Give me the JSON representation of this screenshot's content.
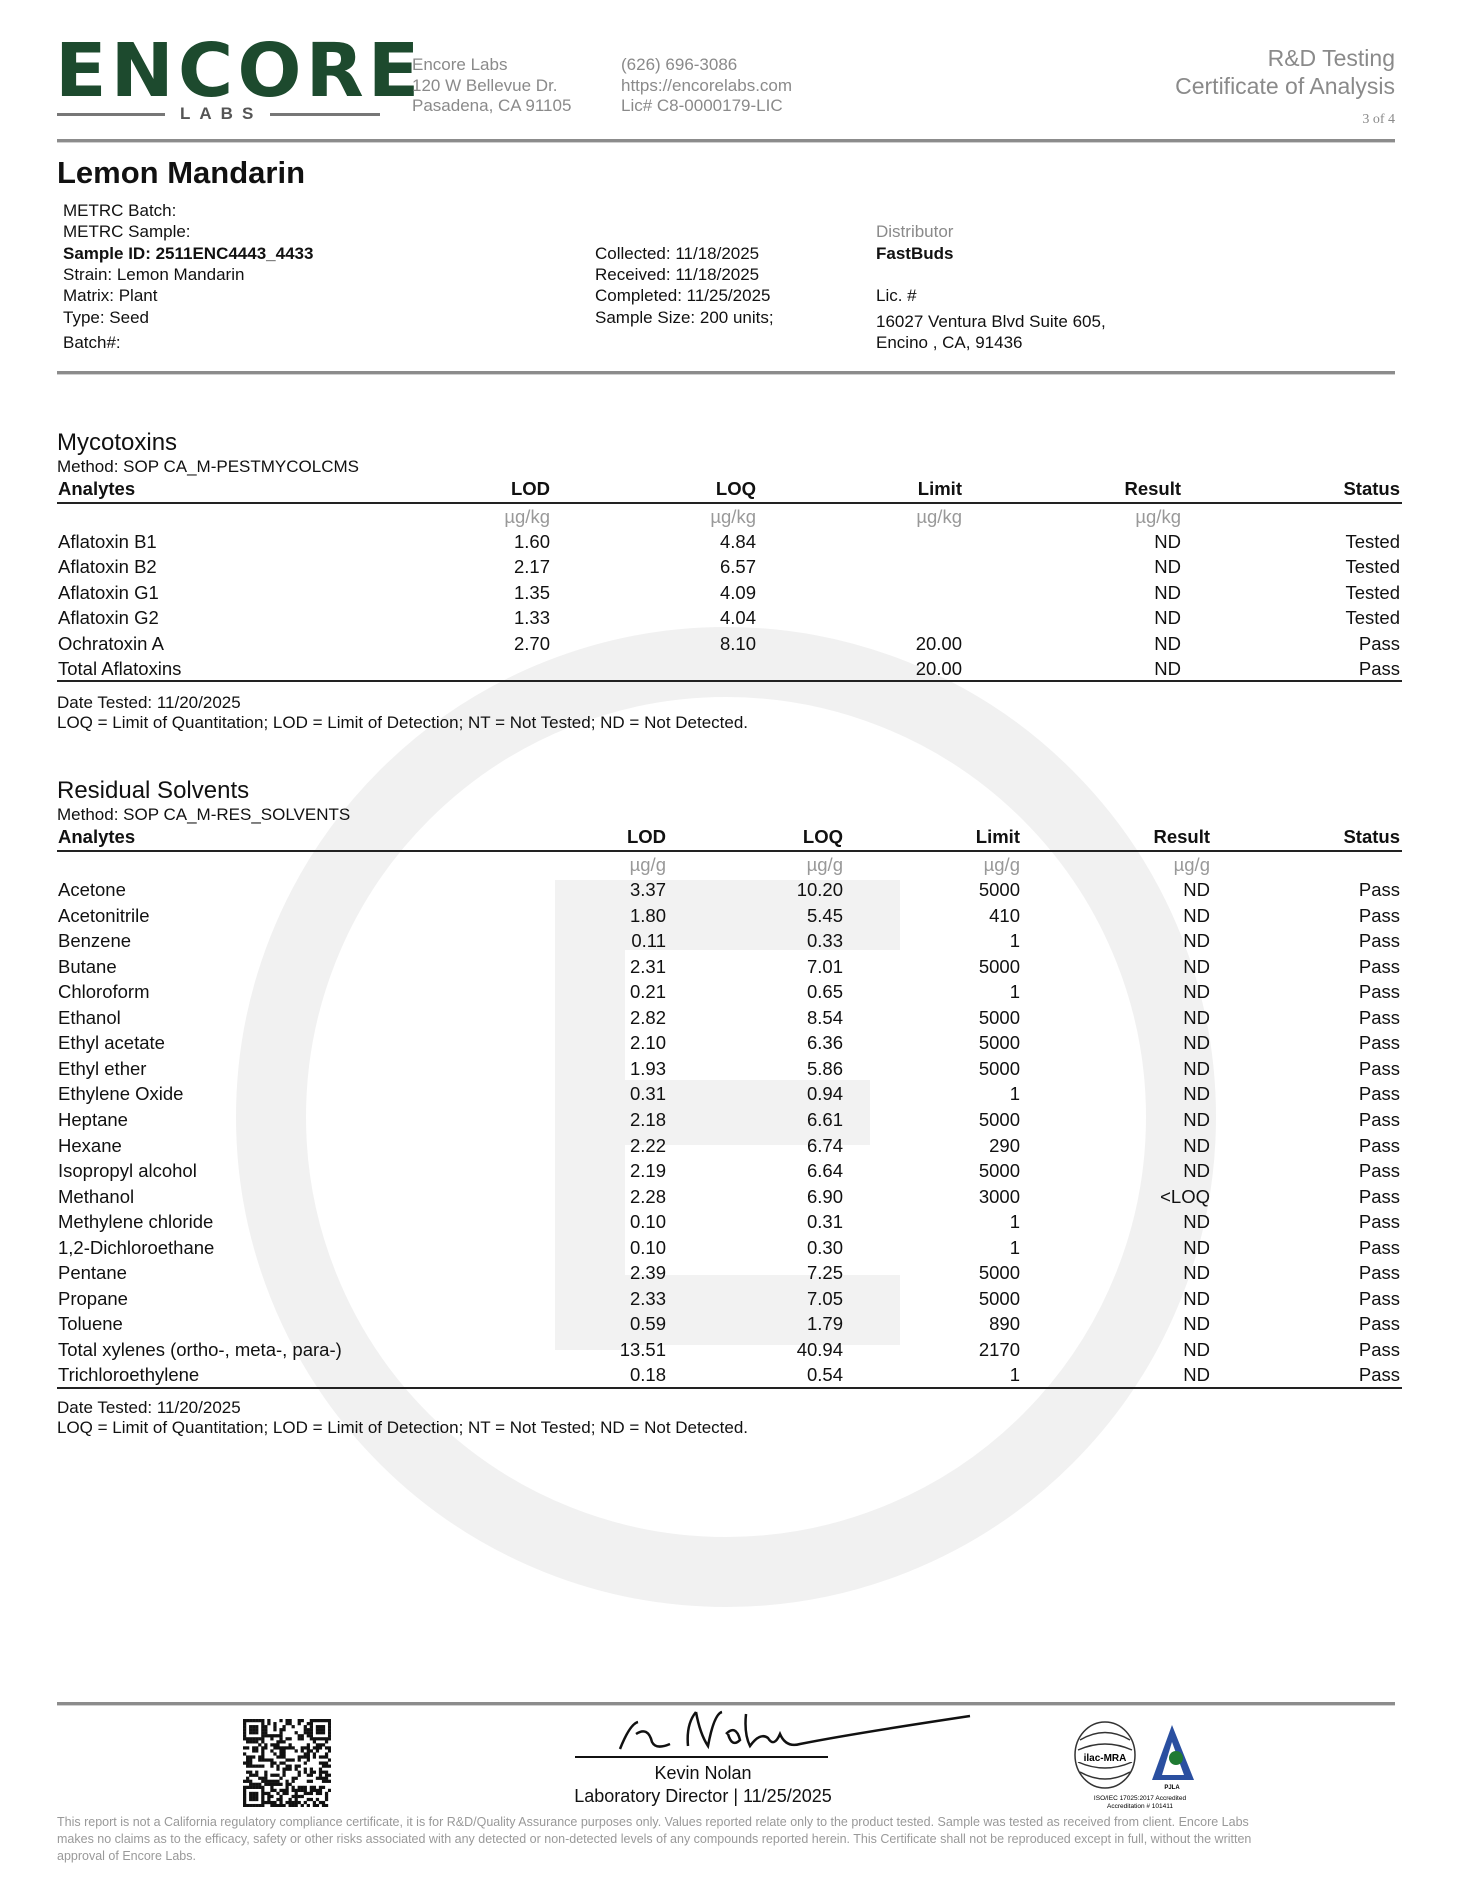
{
  "header": {
    "logo_main": "ENCORE",
    "logo_sub": "LABS",
    "lab_name": "Encore Labs",
    "address1": "120 W Bellevue Dr.",
    "address2": "Pasadena, CA 91105",
    "phone": "(626) 696-3086",
    "website": "https://encorelabs.com",
    "license": "Lic# C8-0000179-LIC",
    "title1": "R&D Testing",
    "title2": "Certificate of Analysis",
    "page": "3 of 4"
  },
  "sample": {
    "name": "Lemon Mandarin",
    "metrc_batch": "METRC Batch:",
    "metrc_sample": "METRC Sample:",
    "sample_id": "Sample ID: 2511ENC4443_4433",
    "strain": "Strain: Lemon Mandarin",
    "matrix": "Matrix: Plant",
    "type": "Type: Seed",
    "batch": "Batch#:",
    "collected": "Collected: 11/18/2025",
    "received": "Received: 11/18/2025",
    "completed": "Completed: 11/25/2025",
    "sample_size": "Sample Size: 200 units;",
    "distributor_label": "Distributor",
    "distributor": "FastBuds",
    "lic": "Lic. #",
    "dist_address1": "16027 Ventura Blvd Suite 605,",
    "dist_address2": "Encino , CA, 91436"
  },
  "mycotoxins": {
    "title": "Mycotoxins",
    "method": "Method: SOP CA_M-PESTMYCOLCMS",
    "columns": [
      "Analytes",
      "LOD",
      "LOQ",
      "Limit",
      "Result",
      "Status"
    ],
    "units": [
      "",
      "µg/kg",
      "µg/kg",
      "µg/kg",
      "µg/kg",
      ""
    ],
    "rows": [
      [
        "Aflatoxin B1",
        "1.60",
        "4.84",
        "",
        "ND",
        "Tested"
      ],
      [
        "Aflatoxin B2",
        "2.17",
        "6.57",
        "",
        "ND",
        "Tested"
      ],
      [
        "Aflatoxin G1",
        "1.35",
        "4.09",
        "",
        "ND",
        "Tested"
      ],
      [
        "Aflatoxin G2",
        "1.33",
        "4.04",
        "",
        "ND",
        "Tested"
      ],
      [
        "Ochratoxin A",
        "2.70",
        "8.10",
        "20.00",
        "ND",
        "Pass"
      ],
      [
        "Total Aflatoxins",
        "",
        "",
        "20.00",
        "ND",
        "Pass"
      ]
    ],
    "date_tested": "Date Tested: 11/20/2025",
    "note": "LOQ = Limit of Quantitation; LOD = Limit of Detection; NT = Not Tested; ND = Not Detected."
  },
  "solvents": {
    "title": "Residual Solvents",
    "method": "Method: SOP CA_M-RES_SOLVENTS",
    "columns": [
      "Analytes",
      "LOD",
      "LOQ",
      "Limit",
      "Result",
      "Status"
    ],
    "units": [
      "",
      "µg/g",
      "µg/g",
      "µg/g",
      "µg/g",
      ""
    ],
    "rows": [
      [
        "Acetone",
        "3.37",
        "10.20",
        "5000",
        "ND",
        "Pass"
      ],
      [
        "Acetonitrile",
        "1.80",
        "5.45",
        "410",
        "ND",
        "Pass"
      ],
      [
        "Benzene",
        "0.11",
        "0.33",
        "1",
        "ND",
        "Pass"
      ],
      [
        "Butane",
        "2.31",
        "7.01",
        "5000",
        "ND",
        "Pass"
      ],
      [
        "Chloroform",
        "0.21",
        "0.65",
        "1",
        "ND",
        "Pass"
      ],
      [
        "Ethanol",
        "2.82",
        "8.54",
        "5000",
        "ND",
        "Pass"
      ],
      [
        "Ethyl acetate",
        "2.10",
        "6.36",
        "5000",
        "ND",
        "Pass"
      ],
      [
        "Ethyl ether",
        "1.93",
        "5.86",
        "5000",
        "ND",
        "Pass"
      ],
      [
        "Ethylene Oxide",
        "0.31",
        "0.94",
        "1",
        "ND",
        "Pass"
      ],
      [
        "Heptane",
        "2.18",
        "6.61",
        "5000",
        "ND",
        "Pass"
      ],
      [
        "Hexane",
        "2.22",
        "6.74",
        "290",
        "ND",
        "Pass"
      ],
      [
        "Isopropyl alcohol",
        "2.19",
        "6.64",
        "5000",
        "ND",
        "Pass"
      ],
      [
        "Methanol",
        "2.28",
        "6.90",
        "3000",
        "<LOQ",
        "Pass"
      ],
      [
        "Methylene chloride",
        "0.10",
        "0.31",
        "1",
        "ND",
        "Pass"
      ],
      [
        "1,2-Dichloroethane",
        "0.10",
        "0.30",
        "1",
        "ND",
        "Pass"
      ],
      [
        "Pentane",
        "2.39",
        "7.25",
        "5000",
        "ND",
        "Pass"
      ],
      [
        "Propane",
        "2.33",
        "7.05",
        "5000",
        "ND",
        "Pass"
      ],
      [
        "Toluene",
        "0.59",
        "1.79",
        "890",
        "ND",
        "Pass"
      ],
      [
        "Total xylenes (ortho-, meta-, para-)",
        "13.51",
        "40.94",
        "2170",
        "ND",
        "Pass"
      ],
      [
        "Trichloroethylene",
        "0.18",
        "0.54",
        "1",
        "ND",
        "Pass"
      ]
    ],
    "date_tested": "Date Tested: 11/20/2025",
    "note": "LOQ = Limit of Quantitation; LOD = Limit of Detection; NT = Not Tested; ND = Not Detected."
  },
  "footer": {
    "signer": "Kevin Nolan",
    "signer_title": "Laboratory Director | 11/25/2025",
    "accreditation_logo1": "ilac-MRA",
    "accreditation_logo2": "PJLA Testing",
    "accreditation_text1": "ISO/IEC 17025:2017 Accredited",
    "accreditation_text2": "Accreditation # 101411",
    "disclaimer1": "This report is not a California regulatory compliance certificate, it is for R&D/Quality Assurance purposes only. Values reported relate only to the product tested. Sample was tested as received from client. Encore Labs",
    "disclaimer2": "makes no claims as to the efficacy, safety or other risks associated with any detected or non-detected levels of any compounds reported herein. This Certificate shall not be reproduced except in full, without the written",
    "disclaimer3": "approval of Encore Labs."
  },
  "colors": {
    "brand_green": "#1d4a2e",
    "rule_gray": "#8c8c8c",
    "watermark": "#f2f2f2"
  }
}
